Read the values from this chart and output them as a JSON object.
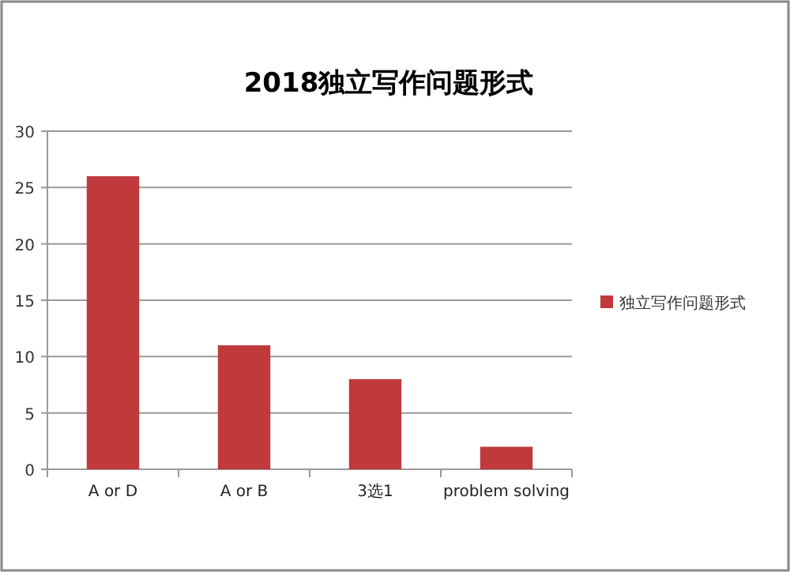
{
  "chart_data": {
    "type": "bar",
    "title": "2018独立写作问题形式",
    "categories": [
      "A or D",
      "A or B",
      "3选1",
      "problem solving"
    ],
    "series": [
      {
        "name": "独立写作问题形式",
        "color": "#c0393b",
        "values": [
          26,
          11,
          8,
          2
        ]
      }
    ],
    "ylim": [
      0,
      30
    ],
    "yticks": [
      0,
      5,
      10,
      15,
      20,
      25,
      30
    ],
    "grid": "y",
    "legend": "right"
  }
}
